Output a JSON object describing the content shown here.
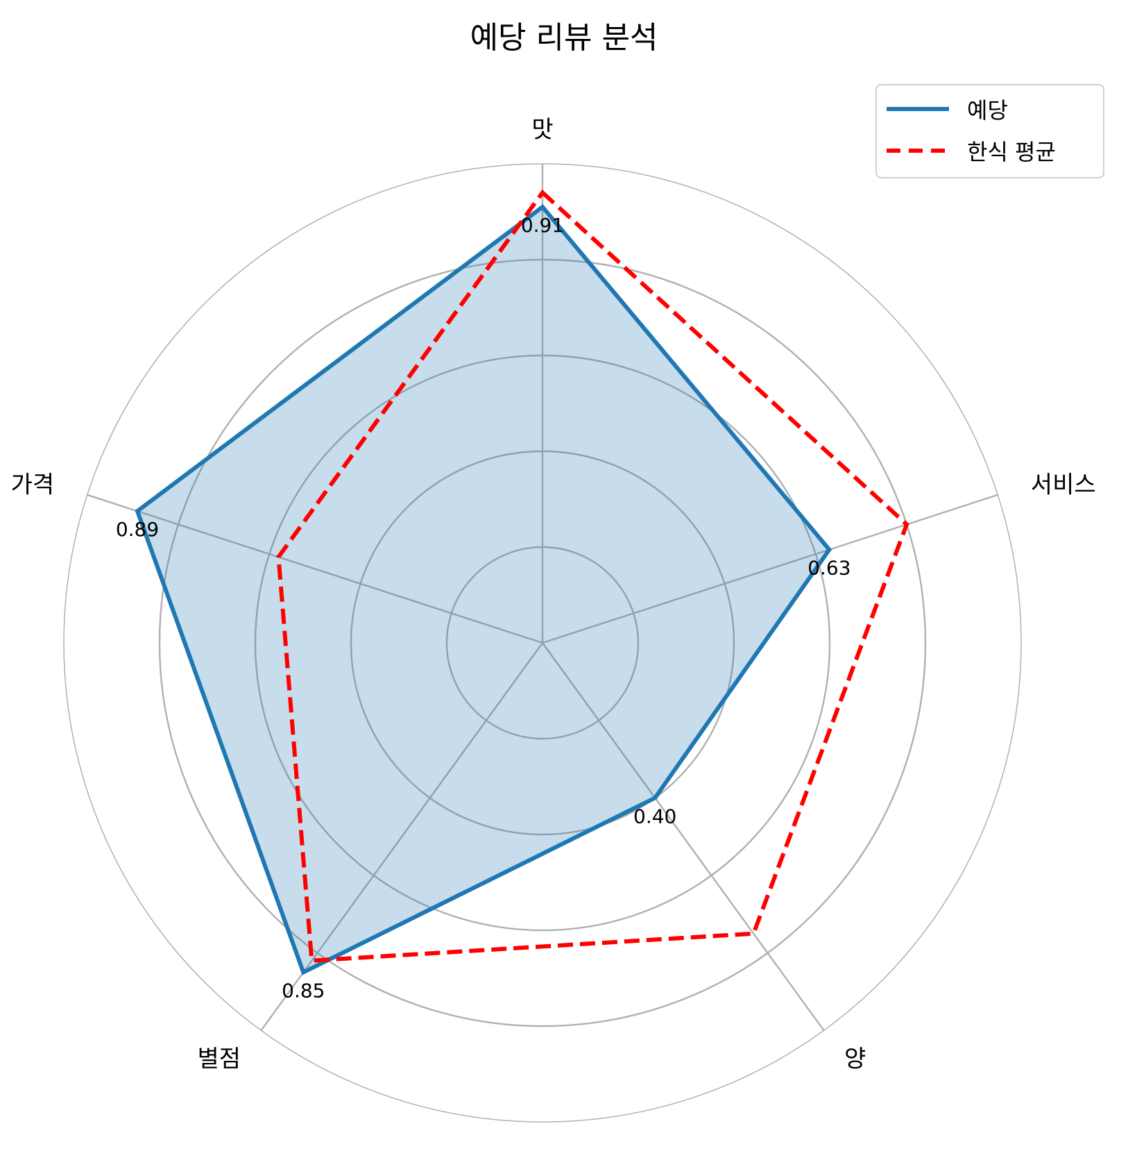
{
  "chart_data": {
    "type": "radar",
    "title": "예당 리뷰 분석",
    "categories": [
      "맛",
      "서비스",
      "양",
      "별점",
      "가격"
    ],
    "series": [
      {
        "name": "예당",
        "values": [
          0.91,
          0.63,
          0.4,
          0.85,
          0.89
        ],
        "color": "#1f77b4",
        "style": "solid",
        "fill": true
      },
      {
        "name": "한식 평균",
        "values": [
          0.94,
          0.8,
          0.75,
          0.82,
          0.58
        ],
        "color": "#ff0000",
        "style": "dashed",
        "fill": false
      }
    ],
    "value_labels": [
      "0.91",
      "0.63",
      "0.40",
      "0.85",
      "0.89"
    ],
    "rlim": [
      0,
      1
    ],
    "grid": true,
    "legend_position": "top-right"
  }
}
